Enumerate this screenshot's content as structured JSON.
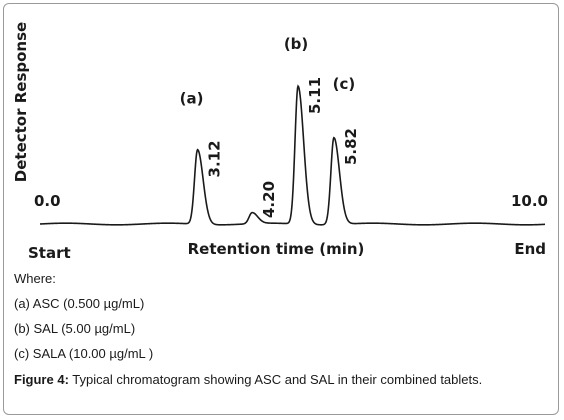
{
  "chart_data": {
    "type": "line",
    "ylabel": "Detector Response",
    "xlabel": "Retention time (min)",
    "x_range_labels": {
      "left": "0.0",
      "right": "10.0"
    },
    "x_end_labels": {
      "left": "Start",
      "right": "End"
    },
    "xlim": [
      0,
      10
    ],
    "ylim": [
      0,
      1
    ],
    "grid": false,
    "peaks": [
      {
        "retention_time": 3.12,
        "rt_label": "3.12",
        "letter": "(a)",
        "height": 0.54
      },
      {
        "retention_time": 4.2,
        "rt_label": "4.20",
        "letter": "",
        "height": 0.08
      },
      {
        "retention_time": 5.11,
        "rt_label": "5.11",
        "letter": "(b)",
        "height": 1.0
      },
      {
        "retention_time": 5.82,
        "rt_label": "5.82",
        "letter": "(c)",
        "height": 0.63
      }
    ],
    "line_color": "#1a1a1a"
  },
  "caption": {
    "where": "Where:",
    "items": [
      "(a) ASC (0.500 µg/mL)",
      "(b) SAL (5.00 µg/mL)",
      "(c) SALA (10.00 µg/mL )"
    ],
    "figure_label": "Figure 4:",
    "figure_text": " Typical chromatogram showing ASC and SAL in their combined tablets."
  }
}
